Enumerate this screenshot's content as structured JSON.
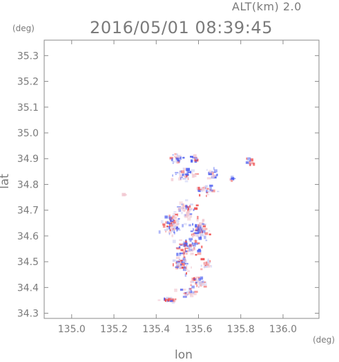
{
  "header": {
    "altitude_label": "ALT(km) 2.0",
    "datetime": "2016/05/01 08:39:45"
  },
  "chart_data": {
    "type": "heatmap",
    "title": "2016/05/01 08:39:45",
    "subtitle": "ALT(km) 2.0",
    "xlabel": "lon",
    "ylabel": "lat",
    "x_unit": "(deg)",
    "y_unit": "(deg)",
    "xlim": [
      134.87,
      136.17
    ],
    "ylim": [
      34.28,
      35.36
    ],
    "x_ticks": [
      135.0,
      135.2,
      135.4,
      135.6,
      135.8,
      136.0
    ],
    "x_tick_labels": [
      "135.0",
      "135.2",
      "135.4",
      "135.6",
      "135.8",
      "136.0"
    ],
    "y_ticks": [
      34.3,
      34.4,
      34.5,
      34.6,
      34.7,
      34.8,
      34.9,
      35.0,
      35.1,
      35.2,
      35.3
    ],
    "y_tick_labels": [
      "34.3",
      "34.4",
      "34.5",
      "34.6",
      "34.7",
      "34.8",
      "34.9",
      "35.0",
      "35.1",
      "35.2",
      "35.3"
    ],
    "grid": false,
    "colors": {
      "positive": "#ef4b4b",
      "negative": "#4a5cf0",
      "neutral": "#e8e8f4"
    },
    "clusters": [
      {
        "lon": 135.5,
        "lat": 34.9,
        "spread_lon": 0.025,
        "spread_lat": 0.018,
        "n": 28,
        "bias": 0.1
      },
      {
        "lon": 135.58,
        "lat": 34.9,
        "spread_lon": 0.015,
        "spread_lat": 0.012,
        "n": 12,
        "bias": -0.3
      },
      {
        "lon": 135.53,
        "lat": 34.84,
        "spread_lon": 0.05,
        "spread_lat": 0.025,
        "n": 40,
        "bias": -0.2
      },
      {
        "lon": 135.67,
        "lat": 34.84,
        "spread_lon": 0.025,
        "spread_lat": 0.02,
        "n": 20,
        "bias": -0.4
      },
      {
        "lon": 135.84,
        "lat": 34.89,
        "spread_lon": 0.018,
        "spread_lat": 0.015,
        "n": 16,
        "bias": 0.5
      },
      {
        "lon": 135.76,
        "lat": 34.82,
        "spread_lon": 0.012,
        "spread_lat": 0.01,
        "n": 8,
        "bias": -0.2
      },
      {
        "lon": 135.64,
        "lat": 34.78,
        "spread_lon": 0.04,
        "spread_lat": 0.025,
        "n": 30,
        "bias": 0.1
      },
      {
        "lon": 135.25,
        "lat": 34.76,
        "spread_lon": 0.008,
        "spread_lat": 0.004,
        "n": 4,
        "bias": -0.6
      },
      {
        "lon": 135.54,
        "lat": 34.7,
        "spread_lon": 0.05,
        "spread_lat": 0.03,
        "n": 55,
        "bias": 0.0
      },
      {
        "lon": 135.48,
        "lat": 34.64,
        "spread_lon": 0.045,
        "spread_lat": 0.035,
        "n": 70,
        "bias": 0.1
      },
      {
        "lon": 135.6,
        "lat": 34.62,
        "spread_lon": 0.04,
        "spread_lat": 0.04,
        "n": 70,
        "bias": -0.3
      },
      {
        "lon": 135.55,
        "lat": 34.56,
        "spread_lon": 0.05,
        "spread_lat": 0.03,
        "n": 60,
        "bias": -0.1
      },
      {
        "lon": 135.52,
        "lat": 34.49,
        "spread_lon": 0.045,
        "spread_lat": 0.03,
        "n": 50,
        "bias": 0.2
      },
      {
        "lon": 135.64,
        "lat": 34.49,
        "spread_lon": 0.025,
        "spread_lat": 0.02,
        "n": 25,
        "bias": 0.6
      },
      {
        "lon": 135.6,
        "lat": 34.42,
        "spread_lon": 0.035,
        "spread_lat": 0.025,
        "n": 35,
        "bias": 0.5
      },
      {
        "lon": 135.55,
        "lat": 34.38,
        "spread_lon": 0.04,
        "spread_lat": 0.015,
        "n": 25,
        "bias": 0.0
      },
      {
        "lon": 135.46,
        "lat": 34.35,
        "spread_lon": 0.035,
        "spread_lat": 0.01,
        "n": 22,
        "bias": -0.2
      }
    ]
  }
}
